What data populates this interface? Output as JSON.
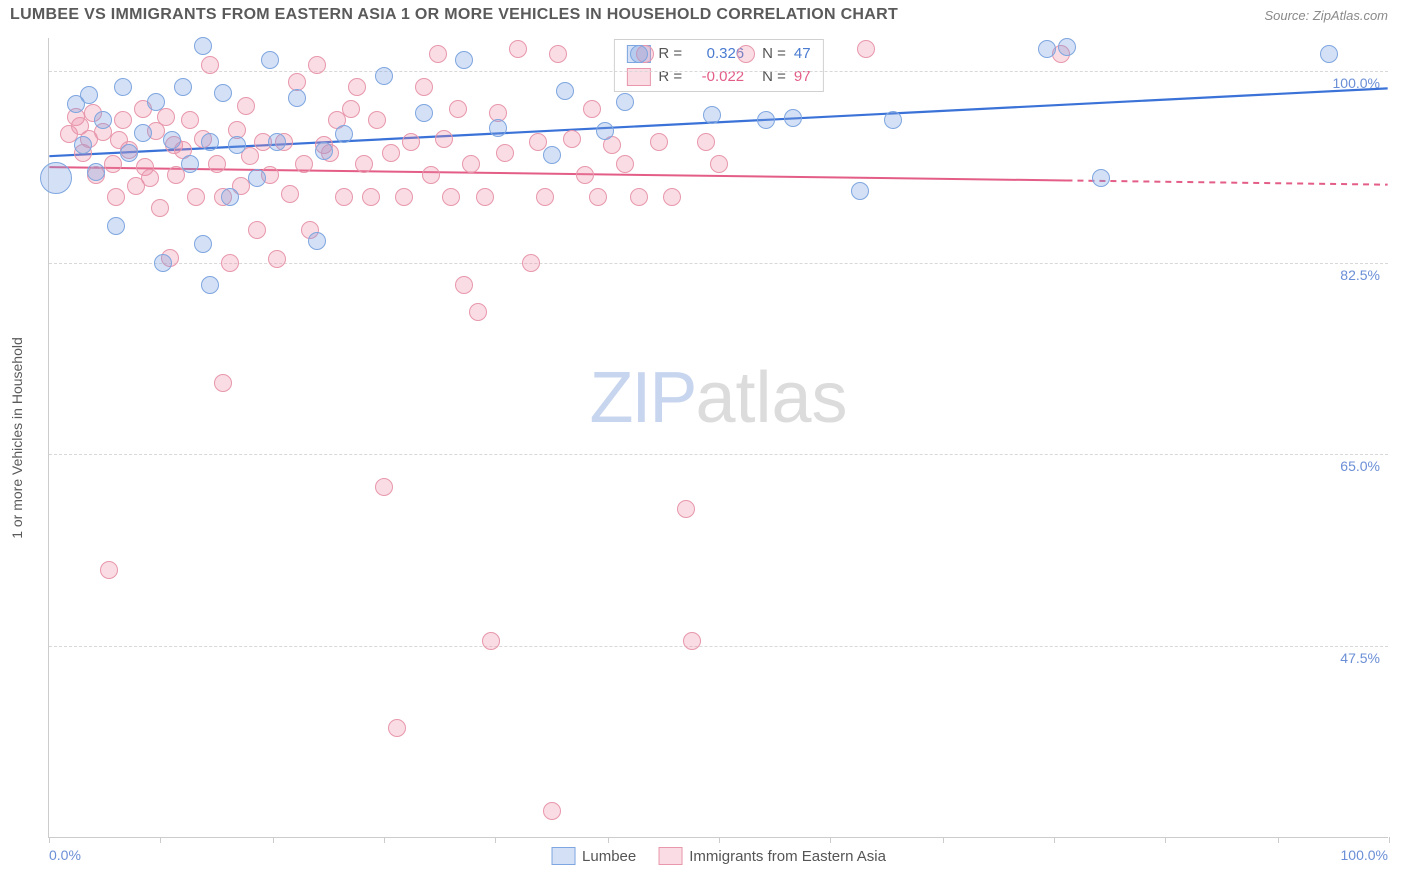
{
  "header": {
    "title": "LUMBEE VS IMMIGRANTS FROM EASTERN ASIA 1 OR MORE VEHICLES IN HOUSEHOLD CORRELATION CHART",
    "source": "Source: ZipAtlas.com"
  },
  "chart": {
    "type": "scatter",
    "ylabel": "1 or more Vehicles in Household",
    "xlim": [
      0,
      100
    ],
    "ylim": [
      30,
      103
    ],
    "xtick_positions": [
      0,
      8.3,
      16.7,
      25,
      33.3,
      41.7,
      50,
      58.3,
      66.7,
      75,
      83.3,
      91.7,
      100
    ],
    "ytick_labels": [
      {
        "v": 100,
        "label": "100.0%"
      },
      {
        "v": 82.5,
        "label": "82.5%"
      },
      {
        "v": 65,
        "label": "65.0%"
      },
      {
        "v": 47.5,
        "label": "47.5%"
      }
    ],
    "xmin_label": "0.0%",
    "xmax_label": "100.0%",
    "background_color": "#ffffff",
    "grid_color": "#d8d8d8",
    "watermark": {
      "left": "ZIP",
      "right": "atlas"
    },
    "series": [
      {
        "name": "Lumbee",
        "color_fill": "rgba(120,160,225,0.32)",
        "color_stroke": "#7ea6e0",
        "line_color": "#3a72d8",
        "line_width": 2.2,
        "marker_radius": 9,
        "trend": {
          "x1": 0,
          "y1": 92.2,
          "x2": 100,
          "y2": 98.4,
          "dash_from_x": null
        },
        "R": "0.326",
        "N": "47",
        "R_color": "#4a7bd0",
        "points": [
          [
            0.5,
            90.2,
            16
          ],
          [
            2,
            97
          ],
          [
            2.5,
            93.2
          ],
          [
            3,
            97.8
          ],
          [
            3.5,
            90.8
          ],
          [
            4,
            95.5
          ],
          [
            5,
            85.8
          ],
          [
            5.5,
            98.5
          ],
          [
            6,
            92.5
          ],
          [
            7,
            94.3
          ],
          [
            8,
            97.2
          ],
          [
            8.5,
            82.5
          ],
          [
            9.2,
            93.7
          ],
          [
            10,
            98.5
          ],
          [
            10.5,
            91.5
          ],
          [
            11.5,
            102.3
          ],
          [
            11.5,
            84.2
          ],
          [
            12,
            93.5
          ],
          [
            12,
            80.5
          ],
          [
            13,
            98
          ],
          [
            13.5,
            88.5
          ],
          [
            14,
            93.2
          ],
          [
            15.5,
            90.2
          ],
          [
            16.5,
            101
          ],
          [
            17,
            93.5
          ],
          [
            18.5,
            97.5
          ],
          [
            20,
            84.5
          ],
          [
            20.5,
            92.7
          ],
          [
            22,
            94.2
          ],
          [
            25,
            99.5
          ],
          [
            28,
            96.2
          ],
          [
            31,
            101
          ],
          [
            33.5,
            94.8
          ],
          [
            37.5,
            92.3
          ],
          [
            38.5,
            98.2
          ],
          [
            41.5,
            94.5
          ],
          [
            43,
            97.2
          ],
          [
            44,
            101.5
          ],
          [
            49.5,
            96
          ],
          [
            53.5,
            95.5
          ],
          [
            55.5,
            95.7
          ],
          [
            60.5,
            89
          ],
          [
            63,
            95.5
          ],
          [
            74.5,
            102
          ],
          [
            76,
            102.2
          ],
          [
            78.5,
            90.2
          ],
          [
            95.5,
            101.5
          ]
        ]
      },
      {
        "name": "Immigrants from Eastern Asia",
        "color_fill": "rgba(235,140,165,0.30)",
        "color_stroke": "#e897ac",
        "line_color": "#e35d87",
        "line_width": 2,
        "marker_radius": 9,
        "trend": {
          "x1": 0,
          "y1": 91.2,
          "x2": 100,
          "y2": 89.6,
          "dash_from_x": 76
        },
        "R": "-0.022",
        "N": "97",
        "R_color": "#e35d87",
        "points": [
          [
            1.5,
            94.2
          ],
          [
            2,
            95.8
          ],
          [
            2.3,
            95.0
          ],
          [
            2.5,
            92.5
          ],
          [
            3,
            93.8
          ],
          [
            3.3,
            96.2
          ],
          [
            3.5,
            90.5
          ],
          [
            4,
            94.4
          ],
          [
            4.5,
            54.5
          ],
          [
            4.8,
            91.5
          ],
          [
            5,
            88.5
          ],
          [
            5.2,
            93.7
          ],
          [
            5.5,
            95.5
          ],
          [
            6,
            92.8
          ],
          [
            6.5,
            89.5
          ],
          [
            7,
            96.5
          ],
          [
            7.2,
            91.2
          ],
          [
            7.5,
            90.2
          ],
          [
            8,
            94.5
          ],
          [
            8.3,
            87.5
          ],
          [
            8.7,
            95.8
          ],
          [
            9,
            82.9
          ],
          [
            9.3,
            93.2
          ],
          [
            9.5,
            90.5
          ],
          [
            10,
            92.8
          ],
          [
            10.5,
            95.5
          ],
          [
            11,
            88.5
          ],
          [
            11.5,
            93.8
          ],
          [
            12,
            100.5
          ],
          [
            12.5,
            91.5
          ],
          [
            13,
            88.5
          ],
          [
            13,
            71.5
          ],
          [
            13.5,
            82.5
          ],
          [
            14,
            94.6
          ],
          [
            14.3,
            89.5
          ],
          [
            14.7,
            96.8
          ],
          [
            15,
            92.2
          ],
          [
            15.5,
            85.5
          ],
          [
            16,
            93.5
          ],
          [
            16.5,
            90.5
          ],
          [
            17,
            82.8
          ],
          [
            17.5,
            93.5
          ],
          [
            18,
            88.8
          ],
          [
            18.5,
            99.0
          ],
          [
            19,
            91.5
          ],
          [
            19.5,
            85.5
          ],
          [
            20,
            100.5
          ],
          [
            20.5,
            93.2
          ],
          [
            21,
            92.5
          ],
          [
            21.5,
            95.5
          ],
          [
            22,
            88.5
          ],
          [
            22.5,
            96.5
          ],
          [
            23,
            98.5
          ],
          [
            23.5,
            91.5
          ],
          [
            24,
            88.5
          ],
          [
            24.5,
            95.5
          ],
          [
            25,
            62
          ],
          [
            25.5,
            92.5
          ],
          [
            26,
            40
          ],
          [
            26.5,
            88.5
          ],
          [
            27,
            93.5
          ],
          [
            28,
            98.5
          ],
          [
            28.5,
            90.5
          ],
          [
            29,
            101.5
          ],
          [
            29.5,
            93.8
          ],
          [
            30,
            88.5
          ],
          [
            30.5,
            96.5
          ],
          [
            31,
            80.5
          ],
          [
            31.5,
            91.5
          ],
          [
            32,
            78
          ],
          [
            32.5,
            88.5
          ],
          [
            33,
            48
          ],
          [
            33.5,
            96.2
          ],
          [
            34,
            92.5
          ],
          [
            35,
            102
          ],
          [
            36,
            82.5
          ],
          [
            36.5,
            93.5
          ],
          [
            37,
            88.5
          ],
          [
            37.5,
            32.5
          ],
          [
            38,
            101.5
          ],
          [
            39,
            93.8
          ],
          [
            40,
            90.5
          ],
          [
            40.5,
            96.5
          ],
          [
            41,
            88.5
          ],
          [
            42,
            93.2
          ],
          [
            43,
            91.5
          ],
          [
            44,
            88.5
          ],
          [
            44.5,
            101.5
          ],
          [
            45.5,
            93.5
          ],
          [
            46.5,
            88.5
          ],
          [
            47.5,
            60
          ],
          [
            48,
            48
          ],
          [
            49,
            93.5
          ],
          [
            50,
            91.5
          ],
          [
            52,
            101.5
          ],
          [
            61,
            102
          ],
          [
            75.5,
            101.5
          ]
        ]
      }
    ]
  }
}
